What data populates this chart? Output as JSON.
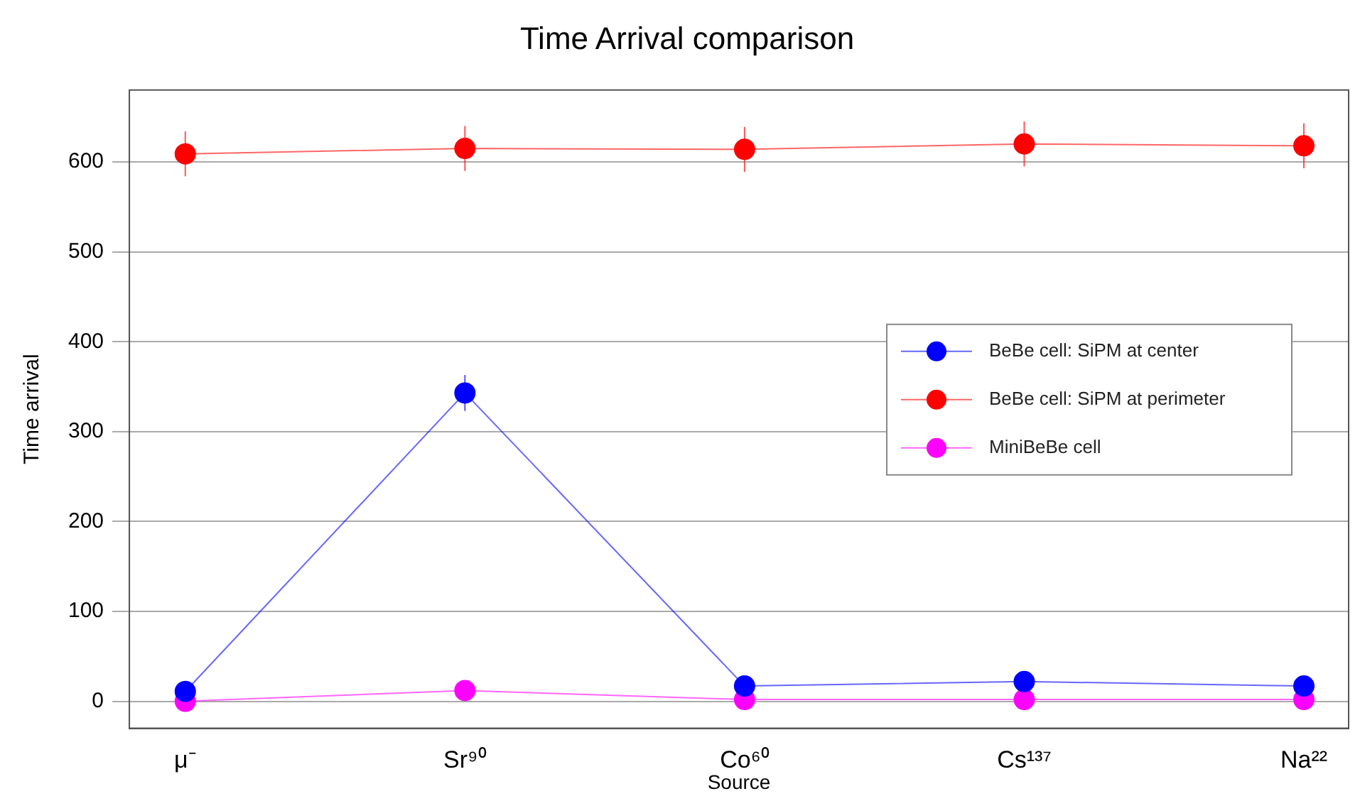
{
  "chart_data": {
    "type": "line",
    "title": "Time Arrival comparison",
    "xlabel": "Source",
    "ylabel": "Time arrival",
    "categories": [
      "μ⁻",
      "Sr⁹⁰",
      "Co⁶⁰",
      "Cs¹³⁷",
      "Na²²"
    ],
    "series": [
      {
        "name": "BeBe cell: SiPM at center",
        "color": "#0000ff",
        "values": [
          11,
          343,
          17,
          22,
          17
        ],
        "errors": [
          null,
          20,
          null,
          null,
          null
        ]
      },
      {
        "name": "BeBe cell: SiPM at perimeter",
        "color": "#ff0000",
        "values": [
          609,
          615,
          614,
          620,
          618
        ],
        "errors": [
          25,
          25,
          25,
          25,
          25
        ]
      },
      {
        "name": "MiniBeBe cell",
        "color": "#ff00ff",
        "values": [
          0,
          12,
          2,
          2,
          2
        ]
      }
    ],
    "ylim": [
      -30,
      680
    ],
    "yticks": [
      0,
      100,
      200,
      300,
      400,
      500,
      600
    ],
    "grid": "y",
    "legend": "right",
    "marker": "circle",
    "line_style": "solid"
  }
}
